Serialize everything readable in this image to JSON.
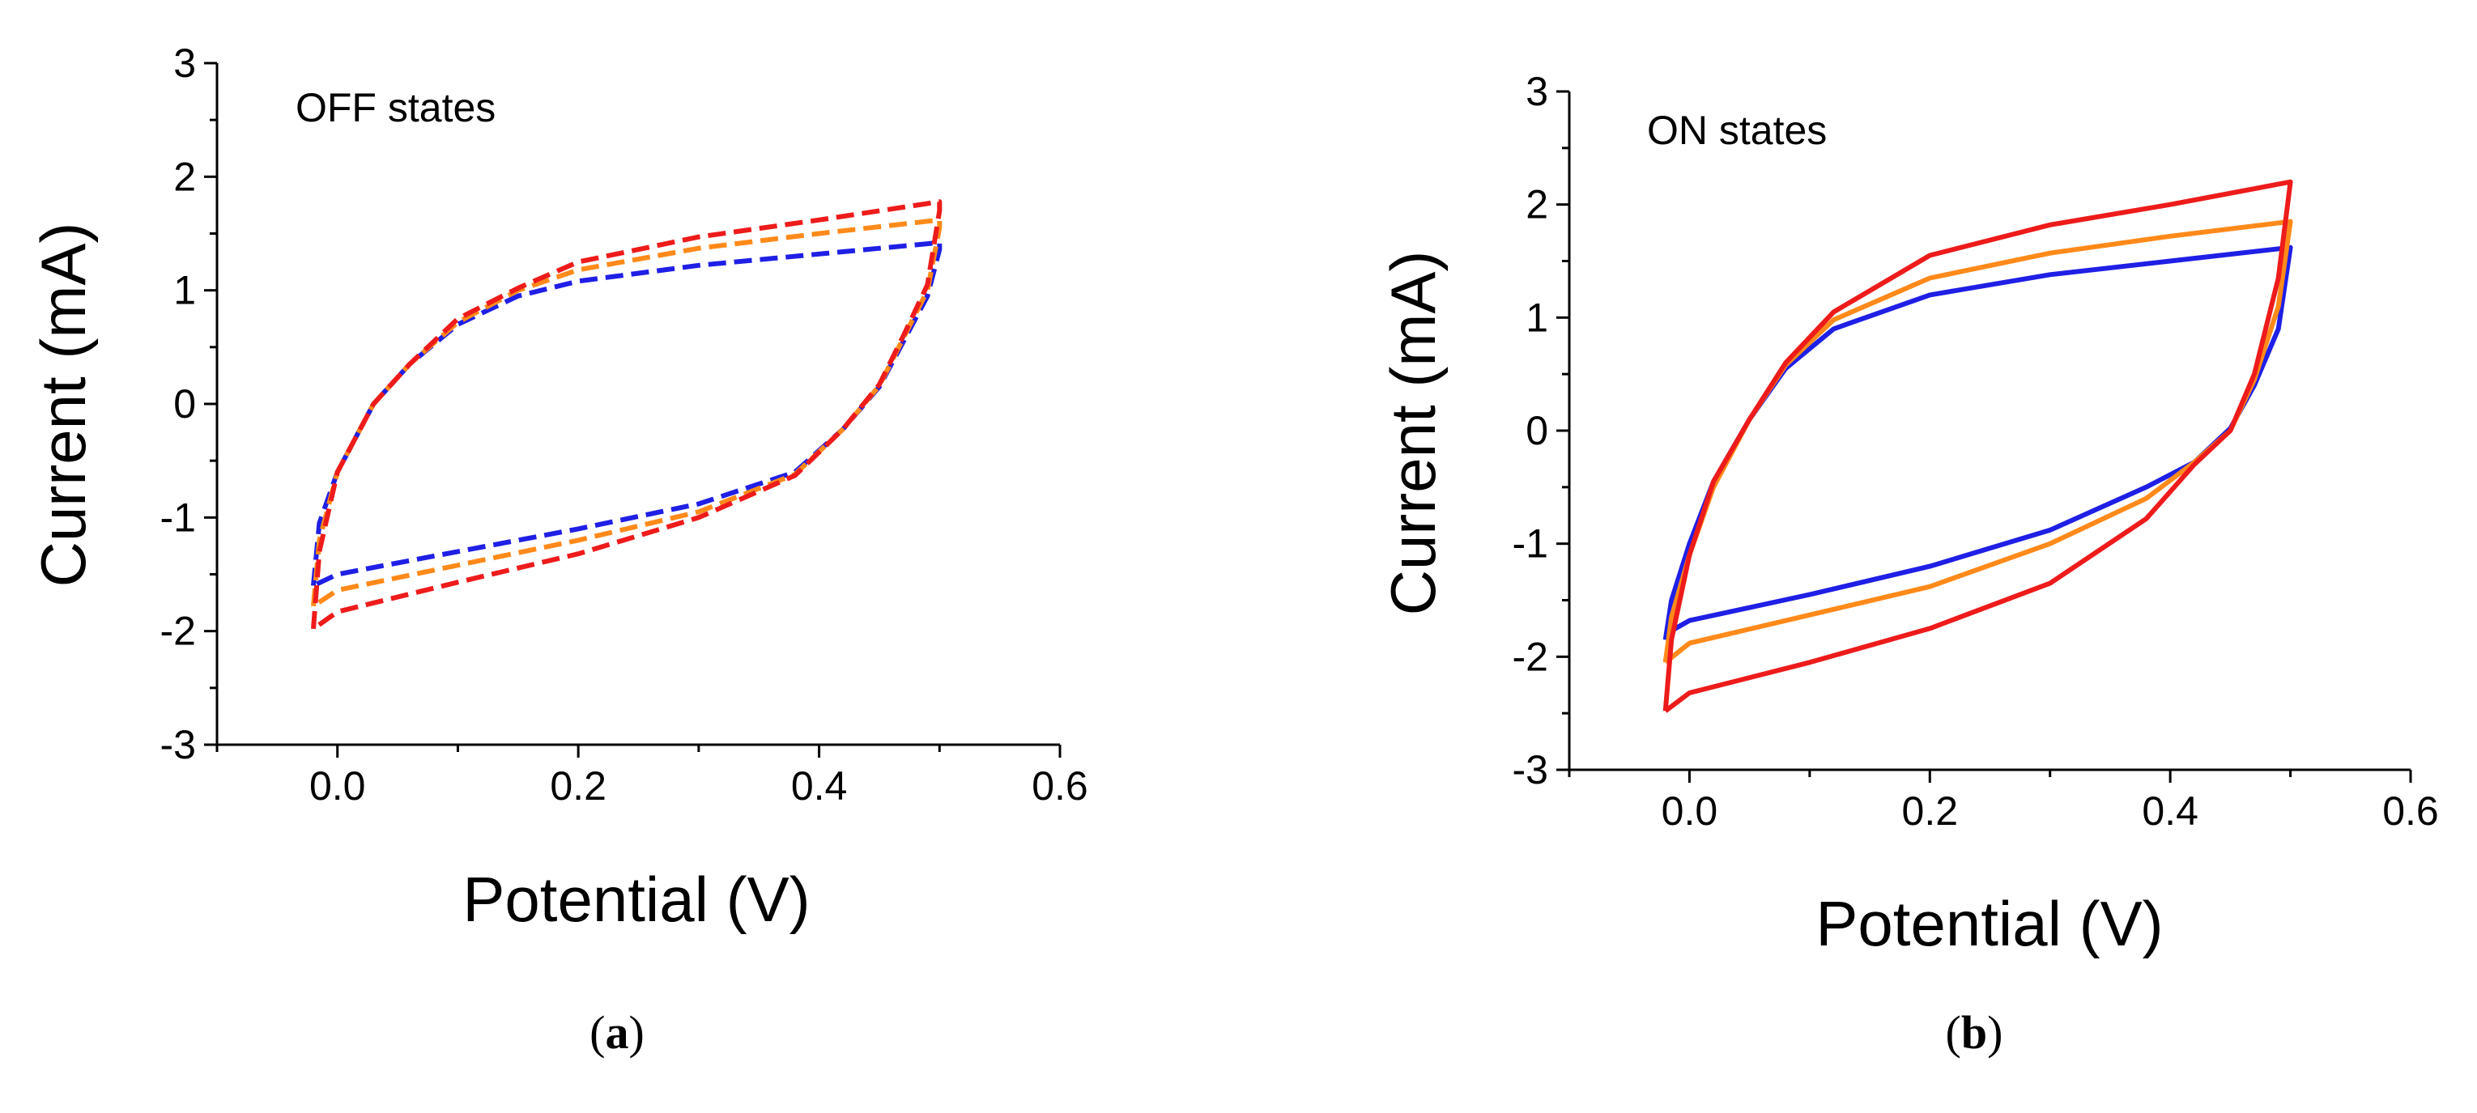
{
  "colors": {
    "blue": "#1f1fe6",
    "orange": "#ff8a1a",
    "red": "#ee1b1b",
    "axis": "#000000"
  },
  "chart_data": [
    {
      "type": "line",
      "panel": "a",
      "caption_letter": "a",
      "caption_open": "(",
      "caption_close": ")",
      "annotation": "OFF states",
      "xlabel": "Potential (V)",
      "ylabel": "Current (mA)",
      "xlim": [
        -0.1,
        0.6
      ],
      "ylim": [
        -3,
        3
      ],
      "xticks": [
        0.0,
        0.2,
        0.4,
        0.6
      ],
      "xtick_labels": [
        "0.0",
        "0.2",
        "0.4",
        "0.6"
      ],
      "yticks": [
        -3,
        -2,
        -1,
        0,
        1,
        2,
        3
      ],
      "ytick_labels": [
        "-3",
        "-2",
        "-1",
        "0",
        "1",
        "2",
        "3"
      ],
      "line_style": "dashed",
      "series": [
        {
          "name": "blue",
          "color": "#1f1fe6",
          "x": [
            -0.02,
            -0.015,
            0.0,
            0.03,
            0.06,
            0.1,
            0.15,
            0.2,
            0.3,
            0.4,
            0.5,
            0.5,
            0.49,
            0.47,
            0.45,
            0.42,
            0.38,
            0.3,
            0.2,
            0.1,
            0.0,
            -0.02
          ],
          "y": [
            -1.6,
            -1.05,
            -0.6,
            0.0,
            0.35,
            0.7,
            0.95,
            1.08,
            1.22,
            1.32,
            1.42,
            1.36,
            0.95,
            0.55,
            0.15,
            -0.22,
            -0.6,
            -0.88,
            -1.1,
            -1.3,
            -1.5,
            -1.6
          ]
        },
        {
          "name": "orange",
          "color": "#ff8a1a",
          "x": [
            -0.02,
            -0.015,
            0.0,
            0.03,
            0.06,
            0.1,
            0.15,
            0.2,
            0.3,
            0.4,
            0.5,
            0.5,
            0.49,
            0.47,
            0.45,
            0.42,
            0.38,
            0.3,
            0.2,
            0.1,
            0.0,
            -0.02
          ],
          "y": [
            -1.78,
            -1.2,
            -0.6,
            0.0,
            0.35,
            0.72,
            1.0,
            1.18,
            1.37,
            1.5,
            1.62,
            1.55,
            1.0,
            0.58,
            0.16,
            -0.22,
            -0.62,
            -0.95,
            -1.2,
            -1.42,
            -1.64,
            -1.78
          ]
        },
        {
          "name": "red",
          "color": "#ee1b1b",
          "x": [
            -0.02,
            -0.015,
            0.0,
            0.03,
            0.06,
            0.1,
            0.15,
            0.2,
            0.3,
            0.4,
            0.5,
            0.5,
            0.49,
            0.47,
            0.45,
            0.42,
            0.38,
            0.3,
            0.2,
            0.1,
            0.0,
            -0.02
          ],
          "y": [
            -1.98,
            -1.3,
            -0.6,
            0.0,
            0.35,
            0.75,
            1.02,
            1.25,
            1.47,
            1.62,
            1.78,
            1.7,
            1.05,
            0.6,
            0.17,
            -0.22,
            -0.63,
            -1.0,
            -1.32,
            -1.57,
            -1.83,
            -1.98
          ]
        }
      ]
    },
    {
      "type": "line",
      "panel": "b",
      "caption_letter": "b",
      "caption_open": "(",
      "caption_close": ")",
      "annotation": "ON states",
      "xlabel": "Potential (V)",
      "ylabel": "Current (mA)",
      "xlim": [
        -0.1,
        0.6
      ],
      "ylim": [
        -3,
        3
      ],
      "xticks": [
        0.0,
        0.2,
        0.4,
        0.6
      ],
      "xtick_labels": [
        "0.0",
        "0.2",
        "0.4",
        "0.6"
      ],
      "yticks": [
        -3,
        -2,
        -1,
        0,
        1,
        2,
        3
      ],
      "ytick_labels": [
        "-3",
        "-2",
        "-1",
        "0",
        "1",
        "2",
        "3"
      ],
      "line_style": "solid",
      "series": [
        {
          "name": "blue",
          "color": "#1f1fe6",
          "x": [
            -0.02,
            -0.015,
            0.0,
            0.02,
            0.05,
            0.08,
            0.12,
            0.2,
            0.3,
            0.4,
            0.5,
            0.5,
            0.49,
            0.47,
            0.45,
            0.42,
            0.38,
            0.3,
            0.2,
            0.1,
            0.0,
            -0.02
          ],
          "y": [
            -1.85,
            -1.5,
            -1.0,
            -0.45,
            0.1,
            0.55,
            0.9,
            1.2,
            1.38,
            1.5,
            1.62,
            1.62,
            0.9,
            0.4,
            0.02,
            -0.28,
            -0.5,
            -0.88,
            -1.2,
            -1.45,
            -1.68,
            -1.8
          ]
        },
        {
          "name": "orange",
          "color": "#ff8a1a",
          "x": [
            -0.02,
            -0.015,
            0.0,
            0.02,
            0.05,
            0.08,
            0.12,
            0.2,
            0.3,
            0.4,
            0.5,
            0.5,
            0.49,
            0.47,
            0.45,
            0.42,
            0.38,
            0.3,
            0.2,
            0.1,
            0.0,
            -0.02
          ],
          "y": [
            -2.05,
            -1.65,
            -1.1,
            -0.5,
            0.1,
            0.58,
            0.98,
            1.35,
            1.57,
            1.72,
            1.85,
            1.85,
            1.1,
            0.45,
            0.0,
            -0.28,
            -0.6,
            -1.0,
            -1.38,
            -1.63,
            -1.88,
            -2.05
          ]
        },
        {
          "name": "red",
          "color": "#ee1b1b",
          "x": [
            -0.02,
            -0.015,
            0.0,
            0.02,
            0.05,
            0.08,
            0.12,
            0.2,
            0.3,
            0.4,
            0.5,
            0.5,
            0.49,
            0.47,
            0.45,
            0.42,
            0.38,
            0.3,
            0.2,
            0.1,
            0.0,
            -0.02
          ],
          "y": [
            -2.48,
            -1.85,
            -1.1,
            -0.45,
            0.1,
            0.6,
            1.05,
            1.55,
            1.82,
            2.0,
            2.2,
            2.2,
            1.35,
            0.5,
            0.0,
            -0.3,
            -0.78,
            -1.35,
            -1.75,
            -2.05,
            -2.32,
            -2.48
          ]
        }
      ]
    }
  ]
}
